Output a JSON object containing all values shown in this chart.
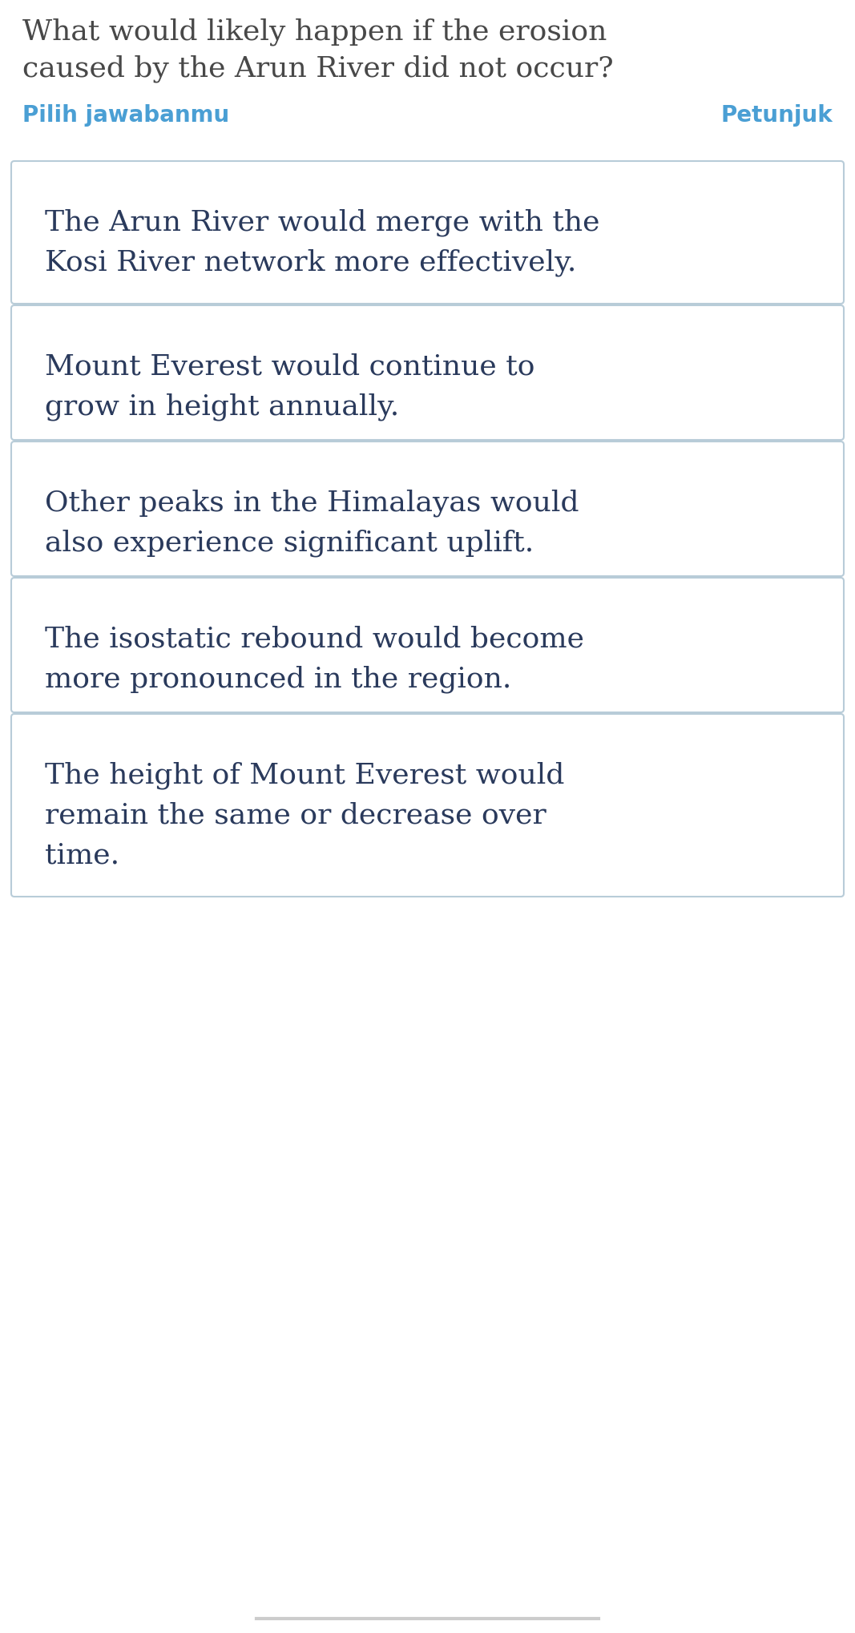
{
  "title_line1": "What would likely happen if the erosion",
  "title_line2": "caused by the Arun River did not occur?",
  "title_color": "#484848",
  "title_fontsize": 26,
  "label_left": "Pilih jawabanmu",
  "label_right": "Petunjuk",
  "label_color": "#4a9fd4",
  "label_fontsize": 20,
  "options": [
    "The Arun River would merge with the\nKosi River network more effectively.",
    "Mount Everest would continue to\ngrow in height annually.",
    "Other peaks in the Himalayas would\nalso experience significant uplift.",
    "The isostatic rebound would become\nmore pronounced in the region.",
    "The height of Mount Everest would\nremain the same or decrease over\ntime."
  ],
  "option_text_color": "#2a3a5c",
  "option_fontsize": 26,
  "box_edge_color": "#b8ccd8",
  "box_face_color": "#ffffff",
  "background_color": "#ffffff",
  "fig_width": 10.67,
  "fig_height": 20.38,
  "dpi": 100
}
